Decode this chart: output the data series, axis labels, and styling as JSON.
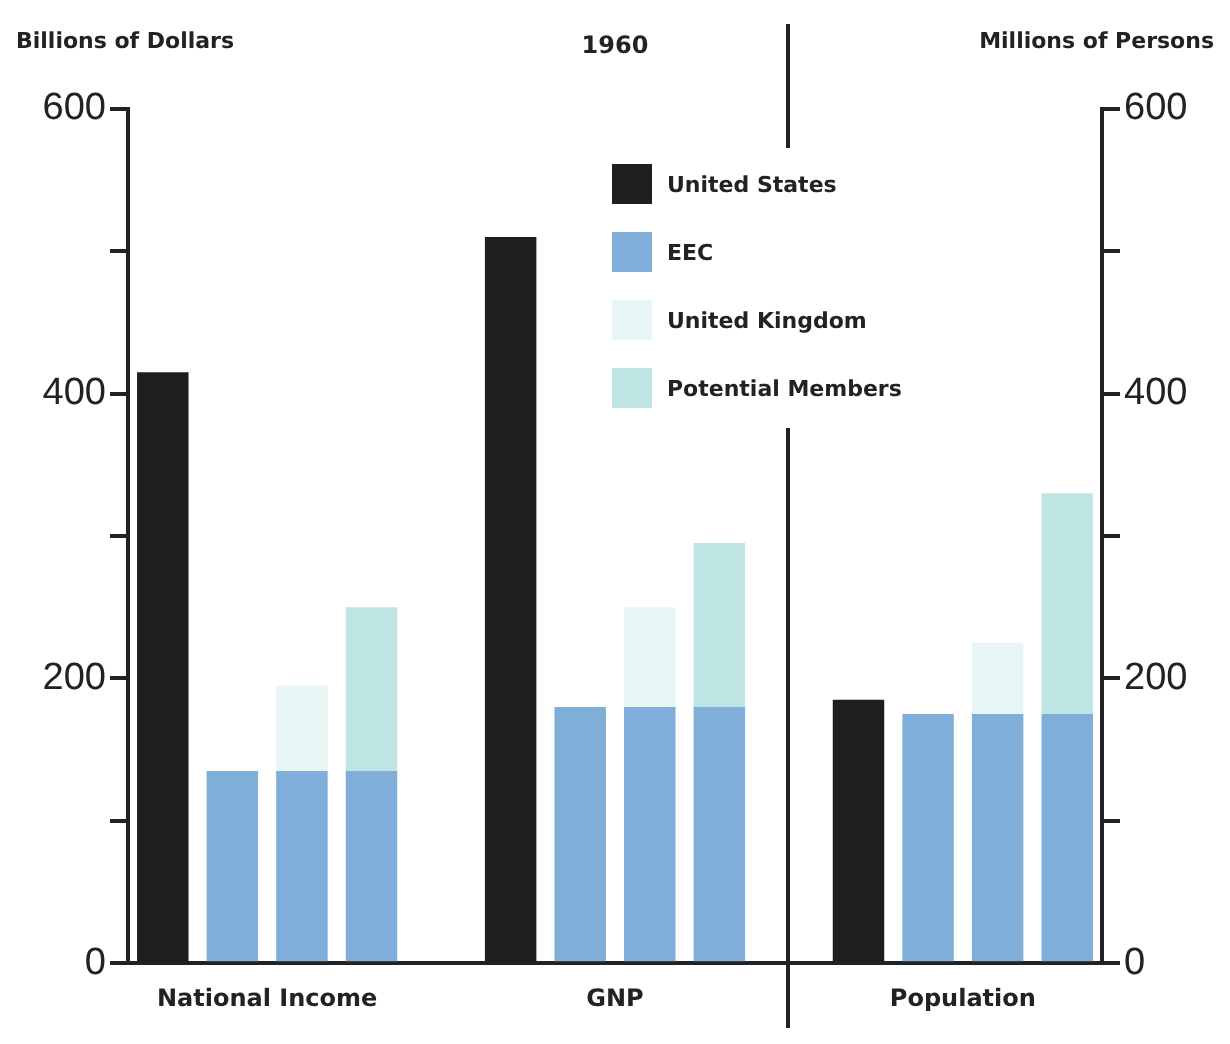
{
  "chart_data": {
    "type": "bar",
    "title": "1960",
    "ylabel": "Billions of Dollars",
    "y2label": "Millions of Persons",
    "categories": [
      null,
      "National Income",
      null,
      null,
      null,
      null,
      "GNP",
      null,
      null,
      null,
      null,
      "Population",
      null,
      null
    ],
    "series": [
      {
        "name": "United States",
        "color": "#1e1e1e",
        "values": [
          415,
          null,
          null,
          null,
          null,
          510,
          null,
          null,
          null,
          null,
          185,
          null,
          null,
          null
        ]
      },
      {
        "name": "EEC",
        "color": "#7fafd8",
        "values": [
          null,
          135,
          135,
          135,
          null,
          null,
          180,
          180,
          180,
          null,
          null,
          175,
          175,
          175
        ]
      },
      {
        "name": "United Kingdom",
        "color": "#e8f5f5",
        "values": [
          null,
          null,
          60,
          null,
          null,
          null,
          null,
          70,
          null,
          null,
          null,
          null,
          50,
          null
        ]
      },
      {
        "name": "Potential Members",
        "color": "#bfe4e4",
        "values": [
          null,
          null,
          null,
          115,
          null,
          null,
          null,
          null,
          115,
          null,
          null,
          null,
          null,
          155
        ]
      }
    ],
    "stacked": true,
    "ylim": [
      0,
      600
    ],
    "yticks": [
      0,
      {
        "value": 100,
        "label": null
      },
      200,
      {
        "value": 300,
        "label": null
      },
      400,
      {
        "value": 500,
        "label": null
      },
      600
    ],
    "y2lim": [
      0,
      600
    ],
    "y2ticks": [
      0,
      {
        "value": 100,
        "label": null
      },
      200,
      {
        "value": 300,
        "label": null
      },
      400,
      {
        "value": 500,
        "label": null
      },
      600
    ],
    "grid": false,
    "legend": "top"
  }
}
